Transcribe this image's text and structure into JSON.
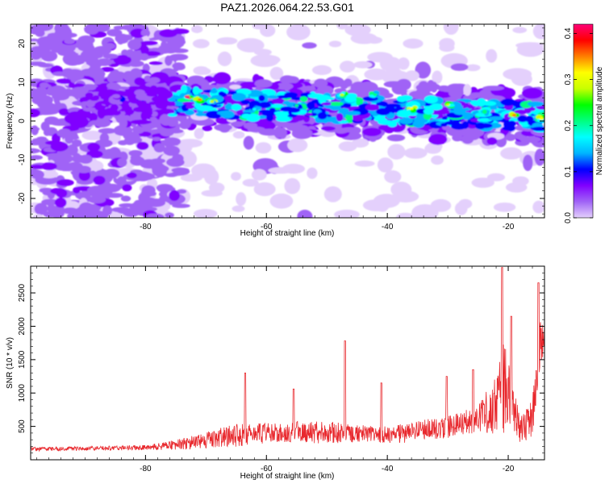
{
  "figure": {
    "title": "PAZ1.2026.064.22.53.G01"
  },
  "chart_data": [
    {
      "type": "heatmap",
      "title": "PAZ1.2026.064.22.53.G01",
      "xlabel": "Height of straight line (km)",
      "ylabel": "Frequency (Hz)",
      "xlim": [
        -99,
        -14
      ],
      "ylim": [
        -25,
        25
      ],
      "x_ticks": [
        -80,
        -60,
        -40,
        -20
      ],
      "y_ticks": [
        20,
        10,
        0,
        -10,
        -20
      ],
      "colorbar": {
        "label": "Normalized spectral amplitude",
        "range": [
          0,
          0.42
        ],
        "ticks": [
          0.0,
          0.1,
          0.2,
          0.3,
          0.4
        ],
        "colormap": [
          "#ffffff",
          "#e4d0fc",
          "#a064f6",
          "#8000ff",
          "#0000ff",
          "#00b4ff",
          "#00ffff",
          "#00ff80",
          "#00ff00",
          "#c8ff00",
          "#ffff00",
          "#ff8000",
          "#ff0000",
          "#ff0078"
        ]
      },
      "band": {
        "description_values": "dominant energy ridge, frequency center vs height",
        "center_freq_start": 6.5,
        "center_freq_end": 1.0,
        "max_x": -73
      }
    },
    {
      "type": "line",
      "xlabel": "Height of straight line (km)",
      "ylabel": "SNR (10 * v/v)",
      "xlim": [
        -99,
        -14
      ],
      "ylim": [
        0,
        2900
      ],
      "x_ticks": [
        -80,
        -60,
        -40,
        -20
      ],
      "y_ticks": [
        500,
        1000,
        1500,
        2000,
        2500
      ],
      "series": [
        {
          "name": "SNR",
          "color": "#e8282d",
          "envelope": {
            "x": [
              -99,
              -90,
              -80,
              -75,
              -70,
              -65,
              -60,
              -55,
              -50,
              -45,
              -40,
              -35,
              -30,
              -25,
              -22,
              -21,
              -20,
              -19,
              -18,
              -16,
              -15,
              -14
            ],
            "base": [
              150,
              160,
              170,
              200,
              250,
              320,
              350,
              380,
              350,
              360,
              320,
              380,
              450,
              550,
              700,
              900,
              800,
              600,
              400,
              500,
              1500,
              1800
            ],
            "amp": [
              60,
              60,
              80,
              150,
              250,
              350,
              300,
              300,
              350,
              250,
              280,
              300,
              350,
              400,
              900,
              1500,
              1100,
              700,
              400,
              600,
              800,
              600
            ]
          },
          "peaks": [
            {
              "x": -63.5,
              "y": 1300
            },
            {
              "x": -55.5,
              "y": 1060
            },
            {
              "x": -47.0,
              "y": 1780
            },
            {
              "x": -41.0,
              "y": 1150
            },
            {
              "x": -30.2,
              "y": 1250
            },
            {
              "x": -25.8,
              "y": 1350
            },
            {
              "x": -21.0,
              "y": 2880
            },
            {
              "x": -19.5,
              "y": 2150
            },
            {
              "x": -15.0,
              "y": 2650
            }
          ]
        }
      ]
    }
  ]
}
